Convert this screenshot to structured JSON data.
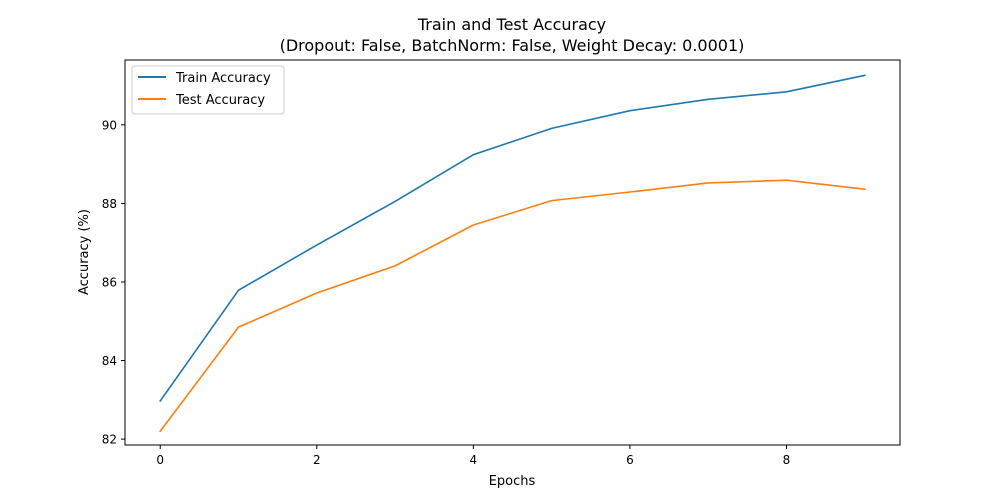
{
  "chart_data": {
    "type": "line",
    "title": "Train and Test Accuracy",
    "subtitle": "(Dropout: False, BatchNorm: False, Weight Decay: 0.0001)",
    "xlabel": "Epochs",
    "ylabel": "Accuracy (%)",
    "xlim": [
      -0.45,
      9.45
    ],
    "ylim": [
      81.85,
      91.65
    ],
    "xticks": [
      0,
      2,
      4,
      6,
      8
    ],
    "yticks": [
      82,
      84,
      86,
      88,
      90
    ],
    "x": [
      0,
      1,
      2,
      3,
      4,
      5,
      6,
      7,
      8,
      9
    ],
    "grid": false,
    "legend_position": "upper-left",
    "series": [
      {
        "name": "Train Accuracy",
        "color": "#1f77b4",
        "values": [
          82.97,
          85.79,
          86.94,
          88.05,
          89.24,
          89.91,
          90.36,
          90.65,
          90.84,
          91.26
        ]
      },
      {
        "name": "Test Accuracy",
        "color": "#ff7f0e",
        "values": [
          82.2,
          84.85,
          85.72,
          86.41,
          87.45,
          88.07,
          88.29,
          88.52,
          88.59,
          88.36
        ]
      }
    ]
  }
}
